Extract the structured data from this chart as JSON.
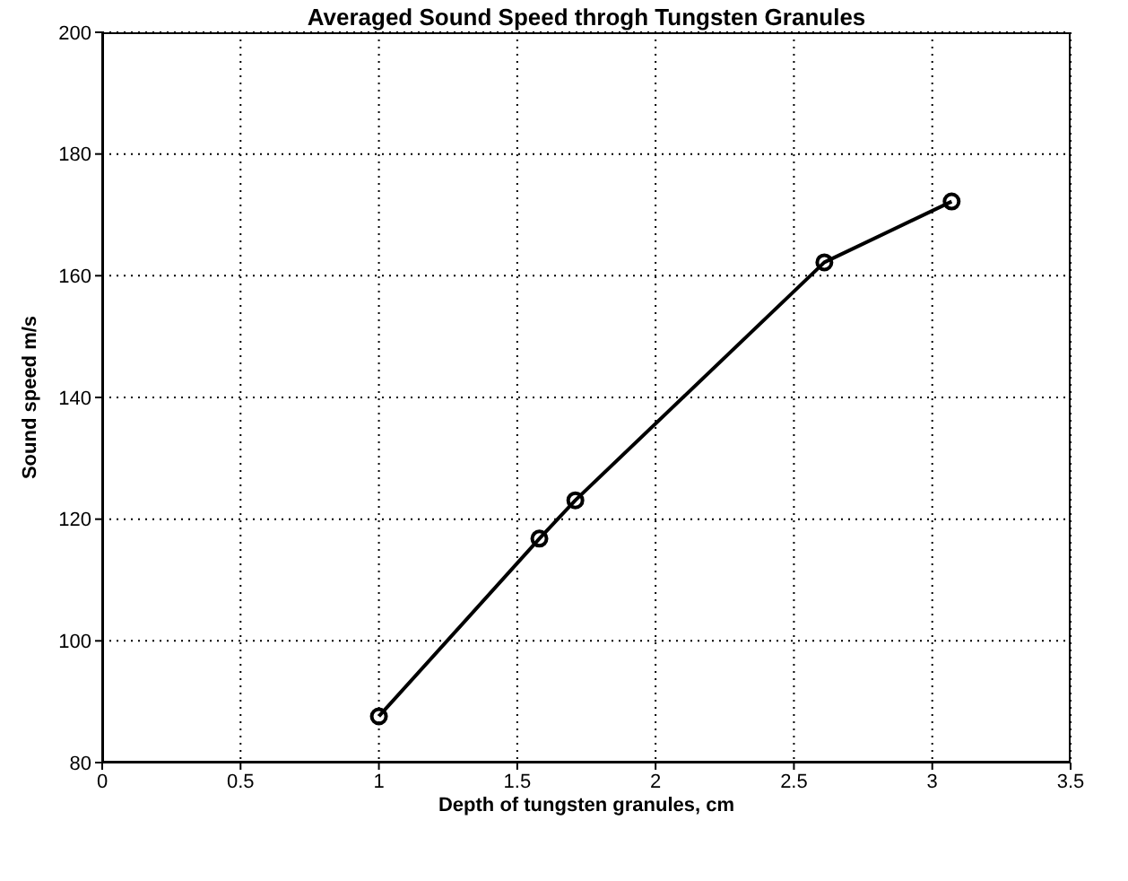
{
  "chart_data": {
    "type": "line",
    "title": "Averaged Sound Speed throgh Tungsten Granules",
    "xlabel": "Depth of tungsten granules, cm",
    "ylabel": "Sound speed m/s",
    "x": [
      1.0,
      1.58,
      1.71,
      2.61,
      3.07
    ],
    "series": [
      {
        "color": "#000000",
        "values": [
          87.6,
          116.8,
          123.1,
          162.2,
          172.2
        ]
      }
    ],
    "xlim": [
      0,
      3.5
    ],
    "xticks": [
      0,
      0.5,
      1,
      1.5,
      2,
      2.5,
      3,
      3.5
    ],
    "ylim": [
      80,
      200
    ],
    "yticks": [
      80,
      100,
      120,
      140,
      160,
      180,
      200
    ],
    "grid": true,
    "marker": "circle",
    "line_style": "solid"
  }
}
